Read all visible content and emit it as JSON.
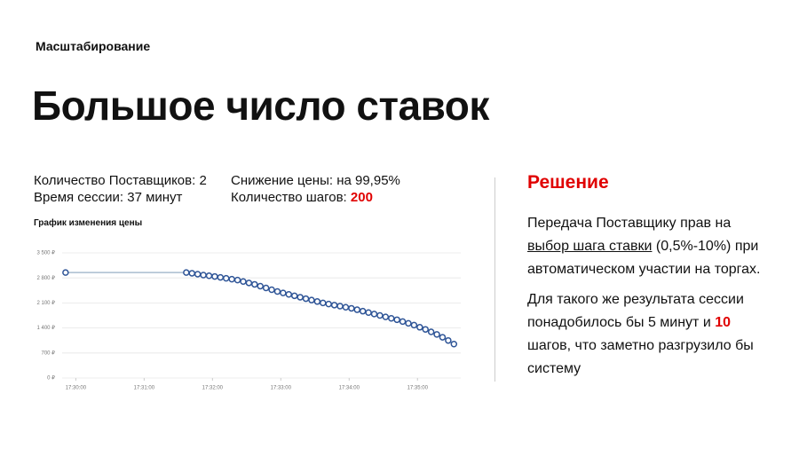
{
  "header": {
    "section": "Масштабирование",
    "title": "Большое число ставок"
  },
  "stats": {
    "suppliers": "Количество Поставщиков: 2",
    "session": "Время сессии: 37 минут",
    "drop": "Снижение цены: на 99,95%",
    "steps_label": "Количество шагов: ",
    "steps_value": "200"
  },
  "solution": {
    "title": "Решение",
    "p1": {
      "before": "Передача Поставщику прав на ",
      "link": "выбор шага ставки",
      "after": " (0,5%-10%) при автоматическом участии на торгах."
    },
    "p2": {
      "before": "Для такого же результата сессии понадобилось бы 5 минут и ",
      "highlight": "10",
      "after": " шагов, что заметно разгрузило бы систему"
    }
  },
  "chart_data": {
    "type": "line",
    "title": "График изменения цены",
    "x": [
      "17:29:51",
      "17:31:37",
      "17:31:42",
      "17:31:47",
      "17:31:52",
      "17:31:57",
      "17:32:02",
      "17:32:07",
      "17:32:12",
      "17:32:17",
      "17:32:22",
      "17:32:27",
      "17:32:32",
      "17:32:37",
      "17:32:42",
      "17:32:47",
      "17:32:52",
      "17:32:57",
      "17:33:02",
      "17:33:07",
      "17:33:12",
      "17:33:17",
      "17:33:22",
      "17:33:27",
      "17:33:32",
      "17:33:37",
      "17:33:42",
      "17:33:47",
      "17:33:52",
      "17:33:57",
      "17:34:02",
      "17:34:07",
      "17:34:12",
      "17:34:17",
      "17:34:22",
      "17:34:27",
      "17:34:32",
      "17:34:37",
      "17:34:42",
      "17:34:47",
      "17:34:52",
      "17:34:57",
      "17:35:02",
      "17:35:07",
      "17:35:12",
      "17:35:17",
      "17:35:22",
      "17:35:27",
      "17:35:32"
    ],
    "series": [
      {
        "color": "#2f5597",
        "values": [
          2950,
          2950,
          2930,
          2905,
          2880,
          2860,
          2840,
          2815,
          2790,
          2765,
          2740,
          2700,
          2660,
          2620,
          2570,
          2520,
          2470,
          2420,
          2380,
          2340,
          2300,
          2260,
          2220,
          2180,
          2140,
          2100,
          2070,
          2040,
          2010,
          1980,
          1950,
          1910,
          1870,
          1830,
          1790,
          1750,
          1710,
          1670,
          1630,
          1580,
          1530,
          1480,
          1420,
          1360,
          1290,
          1220,
          1140,
          1050,
          950
        ]
      }
    ],
    "xlim": [
      "17:29:48",
      "17:35:38"
    ],
    "xticks": [
      "17:30:00",
      "17:31:00",
      "17:32:00",
      "17:33:00",
      "17:34:00",
      "17:35:00"
    ],
    "ylim": [
      0,
      3500
    ],
    "yticks": [
      {
        "value": 0,
        "label": "0 ₽"
      },
      {
        "value": 700,
        "label": "700 ₽"
      },
      {
        "value": 1400,
        "label": "1 400 ₽"
      },
      {
        "value": 2100,
        "label": "2 100 ₽"
      },
      {
        "value": 2800,
        "label": "2 800 ₽"
      },
      {
        "value": 3500,
        "label": "3 500 ₽"
      }
    ],
    "grid": true
  }
}
